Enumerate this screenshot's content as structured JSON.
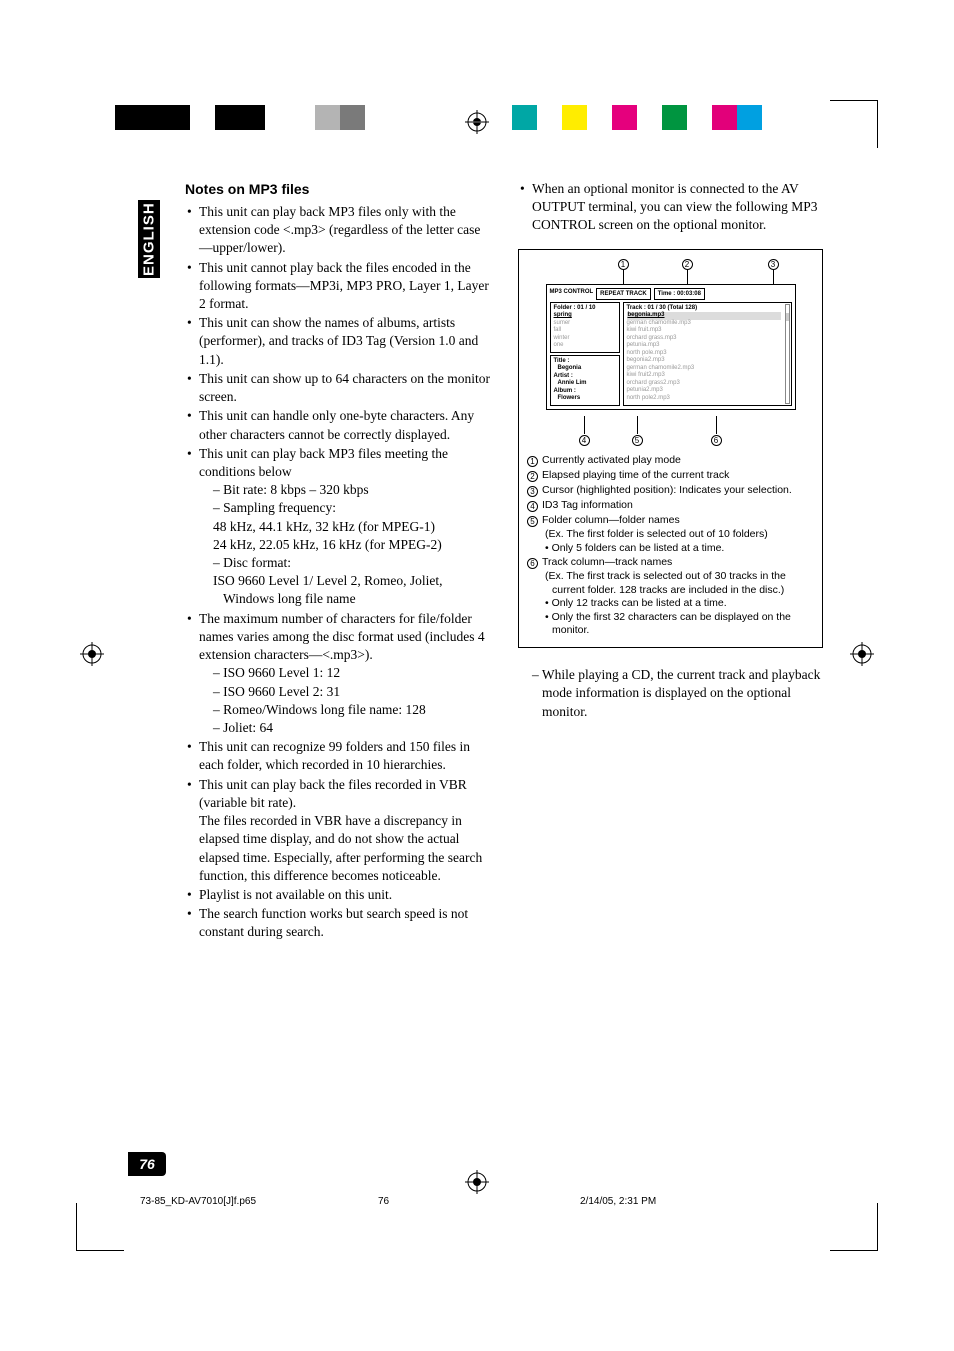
{
  "side_tab": "ENGLISH",
  "page_number": "76",
  "footer": {
    "file": "73-85_KD-AV7010[J]f.p65",
    "page": "76",
    "date": "2/14/05, 2:31 PM"
  },
  "colorbar_left": [
    "#000000",
    "#000000",
    "#000000",
    "#ffffff",
    "#000000",
    "#000000",
    "#ffffff",
    "#ffffff",
    "#b4b4b4",
    "#7a7a7a",
    "#ffffff",
    "#ffffff"
  ],
  "colorbar_right": [
    "#00a7a5",
    "#ffffff",
    "#ffed00",
    "#ffffff",
    "#e5007d",
    "#ffffff",
    "#009540",
    "#ffffff",
    "#e2007a",
    "#00a0e1",
    "#ffffff",
    "#ffffff"
  ],
  "left": {
    "heading": "Notes on MP3 files",
    "bullets": [
      {
        "text": "This unit can play back MP3 files only with the extension code <.mp3> (regardless of the letter case—upper/lower)."
      },
      {
        "text": "This unit cannot play back the files encoded in the following formats—MP3i, MP3 PRO, Layer 1, Layer 2 format."
      },
      {
        "text": "This unit can show the names of albums, artists (performer), and tracks of ID3 Tag (Version 1.0 and 1.1)."
      },
      {
        "text": "This unit can show up to 64 characters on the monitor screen."
      },
      {
        "text": "This unit can handle only one-byte characters. Any other characters cannot be correctly displayed."
      },
      {
        "text": "This unit can play back MP3 files meeting the conditions below",
        "subs": [
          "– Bit rate: 8 kbps – 320 kbps",
          "– Sampling frequency:",
          "48 kHz, 44.1 kHz, 32 kHz (for MPEG-1)",
          "24 kHz, 22.05 kHz, 16 kHz (for MPEG-2)",
          "– Disc format:",
          "ISO 9660 Level 1/ Level 2, Romeo, Joliet, Windows long file name"
        ]
      },
      {
        "text": "The maximum number of characters for file/folder names varies among the disc format used (includes 4 extension characters—<.mp3>).",
        "subs": [
          "– ISO 9660 Level 1: 12",
          "– ISO 9660 Level 2: 31",
          "– Romeo/Windows long file name: 128",
          "– Joliet: 64"
        ]
      },
      {
        "text": "This unit can recognize 99 folders and 150 files in each folder, which recorded in 10 hierarchies."
      },
      {
        "text": "This unit can play back the files recorded in VBR (variable bit rate).",
        "cont": "The files recorded in VBR have a discrepancy in elapsed time display, and do not show the actual elapsed time. Especially, after performing the search function, this difference becomes noticeable."
      },
      {
        "text": "Playlist is not available on this unit."
      },
      {
        "text": "The search function works but search speed is not constant during search."
      }
    ]
  },
  "right": {
    "bullet": "When an optional monitor is connected to the AV OUTPUT terminal, you can view the following MP3 CONTROL screen on the optional monitor.",
    "screen": {
      "title": "MP3 CONTROL",
      "mode": "REPEAT TRACK",
      "time": "Time : 00:03:08",
      "folder_hdr": "Folder : 01 / 10",
      "track_hdr": "Track : 01 / 30    (Total 128)",
      "folders": [
        "spring",
        "sumer",
        "fall",
        "winter",
        "one"
      ],
      "tracks": [
        "begonia.mp3",
        "german chamomile.mp3",
        "kiwi fruit.mp3",
        "orchard grass.mp3",
        "petunia.mp3",
        "north pole.mp3",
        "begonia2.mp3",
        "german chamomile2.mp3",
        "kiwi fruit2.mp3",
        "orchard grass2.mp3",
        "petunia2.mp3",
        "north pole2.mp3"
      ],
      "id3": {
        "title_l": "Title :",
        "title": "Begonia",
        "artist_l": "Artist :",
        "artist": "Annie Lim",
        "album_l": "Album :",
        "album": "Flowers"
      }
    },
    "legend": [
      {
        "n": "1",
        "t": "Currently activated play mode"
      },
      {
        "n": "2",
        "t": "Elapsed playing time of the current track"
      },
      {
        "n": "3",
        "t": "Cursor (highlighted position): Indicates your selection."
      },
      {
        "n": "4",
        "t": "ID3 Tag information"
      },
      {
        "n": "5",
        "t": "Folder column—folder names",
        "subs": [
          "(Ex. The first folder is selected out of 10 folders)",
          "• Only 5 folders can be listed at a time."
        ]
      },
      {
        "n": "6",
        "t": "Track column—track names",
        "subs": [
          "(Ex. The first track is selected out of 30 tracks in the current folder. 128 tracks are included in the disc.)",
          "• Only 12 tracks can be listed at a time.",
          "• Only the first 32 characters can be displayed on the monitor."
        ]
      }
    ],
    "tail": "– While playing a CD, the current track and playback mode information is displayed on the optional monitor."
  }
}
